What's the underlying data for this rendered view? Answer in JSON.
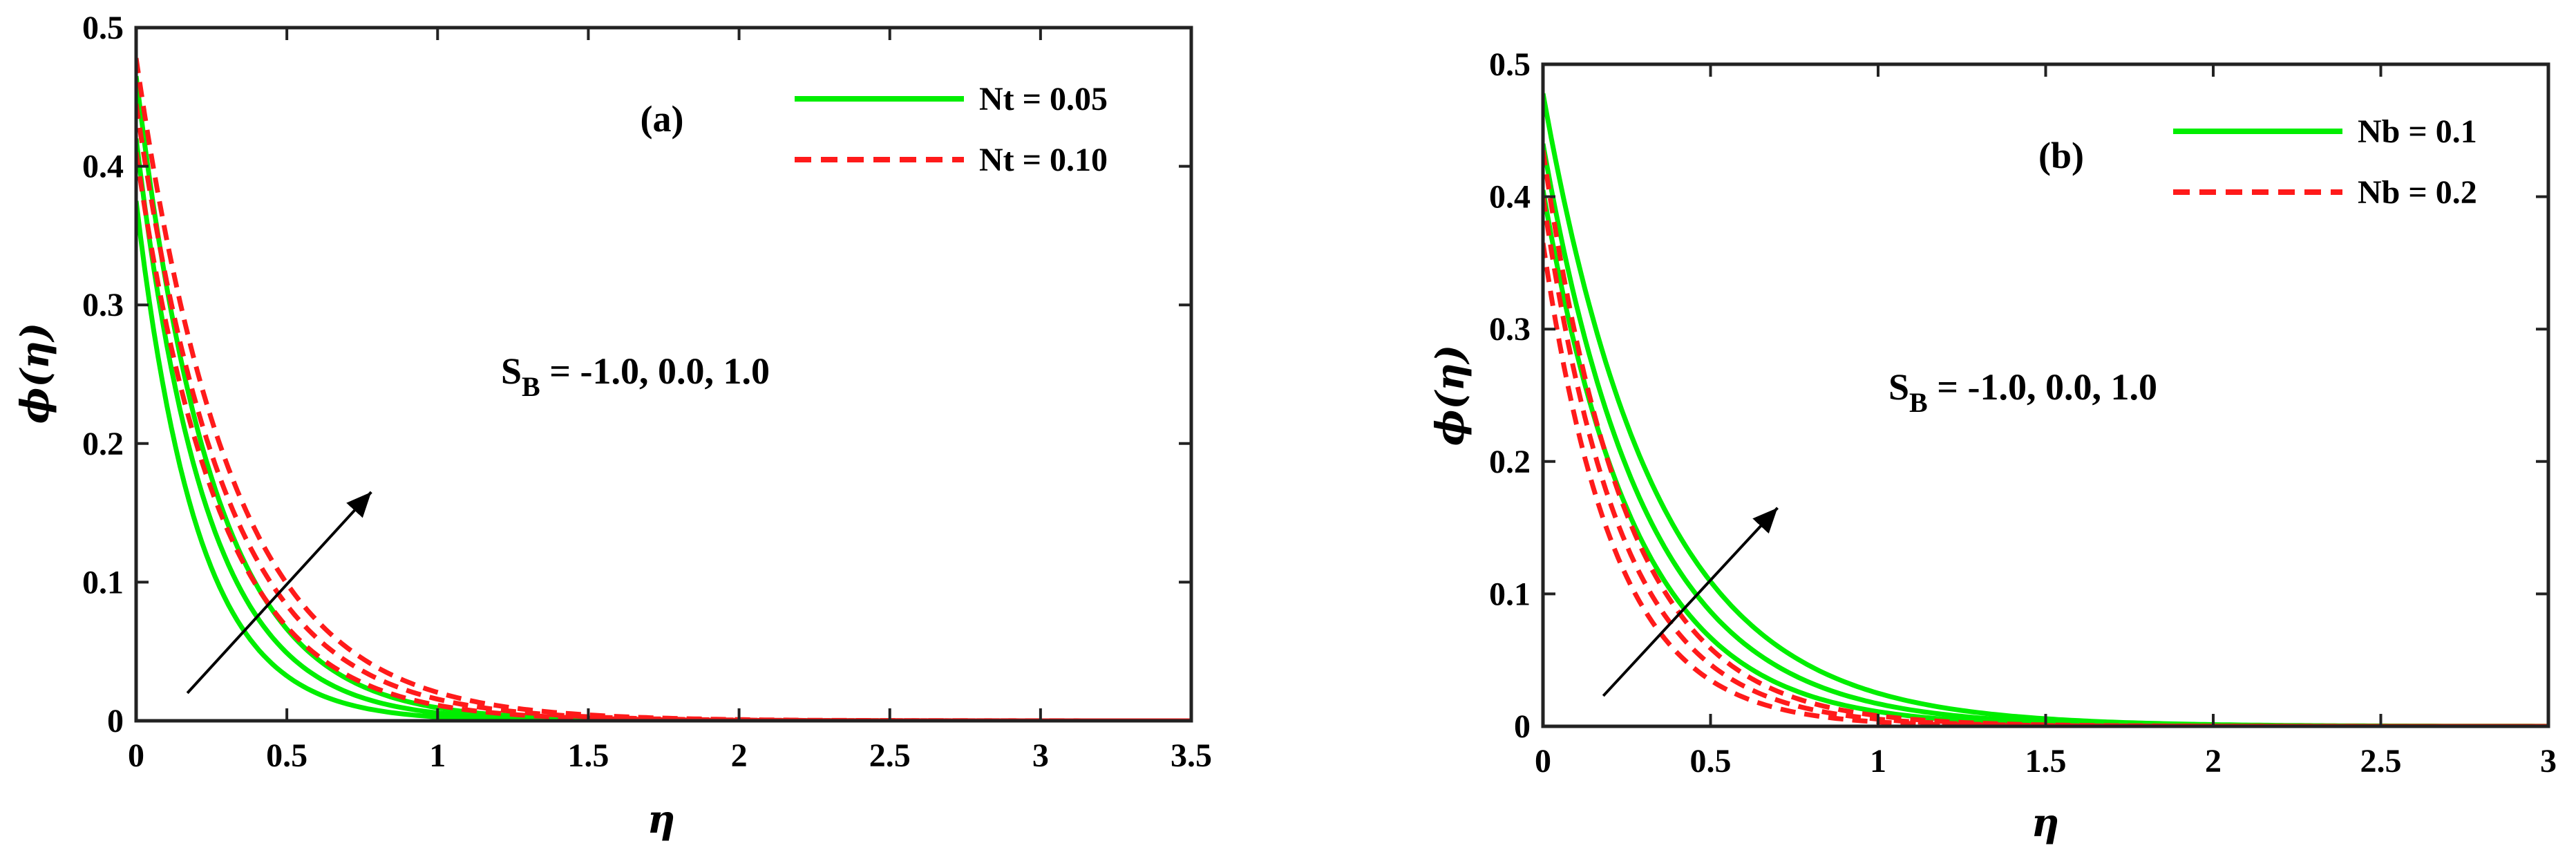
{
  "chart_data": [
    {
      "type": "line",
      "panel_label": "(a)",
      "xlabel": "η",
      "ylabel": "ϕ(η)",
      "xlim": [
        0,
        3.5
      ],
      "ylim": [
        0,
        0.5
      ],
      "xticks": [
        "0",
        "0.5",
        "1",
        "1.5",
        "2",
        "2.5",
        "3",
        "3.5"
      ],
      "yticks": [
        "0",
        "0.1",
        "0.2",
        "0.3",
        "0.4",
        "0.5"
      ],
      "annotation": {
        "main": "S",
        "sub": "B",
        "rest": " = -1.0, 0.0, 1.0"
      },
      "arrow": {
        "from": [
          0.17,
          0.02
        ],
        "to": [
          0.78,
          0.165
        ]
      },
      "legend": [
        {
          "label": "Nt = 0.05",
          "color": "#00ee00",
          "dash": "solid"
        },
        {
          "label": "Nt = 0.10",
          "color": "#ff1a1a",
          "dash": "dashed"
        }
      ],
      "series": [
        {
          "name": "Nt = 0.05, S_B = -1.0",
          "group": 0,
          "f0": 0.375,
          "decay": 4.9
        },
        {
          "name": "Nt = 0.05, S_B = 0.0",
          "group": 0,
          "f0": 0.42,
          "decay": 4.3
        },
        {
          "name": "Nt = 0.05, S_B = 1.0",
          "group": 0,
          "f0": 0.465,
          "decay": 3.9
        },
        {
          "name": "Nt = 0.10, S_B = -1.0",
          "group": 1,
          "f0": 0.41,
          "decay": 3.6
        },
        {
          "name": "Nt = 0.10, S_B = 0.0",
          "group": 1,
          "f0": 0.445,
          "decay": 3.35
        },
        {
          "name": "Nt = 0.10, S_B = 1.0",
          "group": 1,
          "f0": 0.478,
          "decay": 3.15
        }
      ]
    },
    {
      "type": "line",
      "panel_label": "(b)",
      "xlabel": "η",
      "ylabel": "ϕ(η)",
      "xlim": [
        0,
        3
      ],
      "ylim": [
        0,
        0.5
      ],
      "xticks": [
        "0",
        "0.5",
        "1",
        "1.5",
        "2",
        "2.5",
        "3"
      ],
      "yticks": [
        "0",
        "0.1",
        "0.2",
        "0.3",
        "0.4",
        "0.5"
      ],
      "annotation": {
        "main": "S",
        "sub": "B",
        "rest": " = -1.0, 0.0, 1.0"
      },
      "arrow": {
        "from": [
          0.18,
          0.023
        ],
        "to": [
          0.7,
          0.165
        ]
      },
      "legend": [
        {
          "label": "Nb = 0.1",
          "color": "#00ee00",
          "dash": "solid"
        },
        {
          "label": "Nb = 0.2",
          "color": "#ff1a1a",
          "dash": "dashed"
        }
      ],
      "series": [
        {
          "name": "Nb = 0.1, S_B = -1.0",
          "group": 0,
          "f0": 0.405,
          "decay": 3.6
        },
        {
          "name": "Nb = 0.1, S_B = 0.0",
          "group": 0,
          "f0": 0.44,
          "decay": 3.25
        },
        {
          "name": "Nb = 0.1, S_B = 1.0",
          "group": 0,
          "f0": 0.478,
          "decay": 2.95
        },
        {
          "name": "Nb = 0.2, S_B = -1.0",
          "group": 1,
          "f0": 0.365,
          "decay": 4.7
        },
        {
          "name": "Nb = 0.2, S_B = 0.0",
          "group": 1,
          "f0": 0.4,
          "decay": 4.3
        },
        {
          "name": "Nb = 0.2, S_B = 1.0",
          "group": 1,
          "f0": 0.435,
          "decay": 4.0
        }
      ]
    }
  ]
}
